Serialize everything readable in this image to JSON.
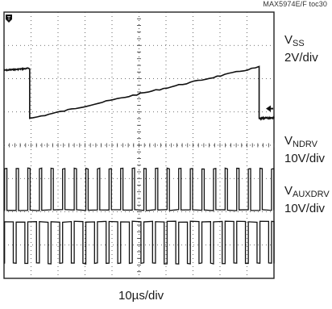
{
  "figure_code": "MAX5974E/F toc30",
  "chart_data": {
    "type": "line",
    "subtype": "oscilloscope-capture",
    "time_scale_label": "10µs/div",
    "divisions": {
      "horizontal": 10,
      "vertical": 8
    },
    "grid": true,
    "trigger_marker": "T",
    "channels": [
      {
        "name_main": "V",
        "name_sub": "SS",
        "scale_label": "2V/div",
        "waveform": "sawtooth",
        "segments": [
          {
            "t": [
              0.0,
              0.95
            ],
            "level_div": [
              6.25,
              6.31
            ]
          },
          {
            "t": [
              0.95,
              9.45
            ],
            "level_div": [
              4.8,
              6.35
            ]
          },
          {
            "t": [
              9.45,
              10.0
            ],
            "level_div": [
              4.8,
              4.83
            ]
          }
        ],
        "marker": "channel-arrow",
        "marker_level_div": 5.1,
        "color": "#111111"
      },
      {
        "name_main": "V",
        "name_sub": "NDRV",
        "scale_label": "10V/div",
        "waveform": "pulse-train",
        "period_div": 0.43,
        "duty": 0.2,
        "low_div": 2.05,
        "high_div": 3.3,
        "color": "#111111"
      },
      {
        "name_main": "V",
        "name_sub": "AUXDRV",
        "scale_label": "10V/div",
        "waveform": "pulse-train",
        "period_div": 0.43,
        "duty": 0.75,
        "low_div": 0.45,
        "high_div": 1.7,
        "color": "#111111"
      }
    ]
  }
}
